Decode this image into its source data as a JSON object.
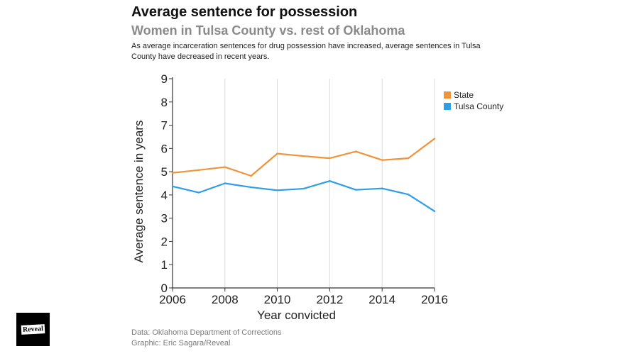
{
  "header": {
    "title": "Average sentence for possession",
    "subtitle": "Women in Tulsa County vs. rest of Oklahoma",
    "description": "As average incarceration sentences for drug possession have increased, average sentences in Tulsa County have decreased in recent years."
  },
  "footer": {
    "source": "Data: Oklahoma Department of Corrections",
    "credit": "Graphic: Eric Sagara/Reveal",
    "logo_text": "Reveal"
  },
  "colors": {
    "state": "#f0943a",
    "tulsa": "#2e9ee8",
    "grid": "#d9d9d9",
    "axis": "#333333"
  },
  "chart_data": {
    "type": "line",
    "title": "Average sentence for possession",
    "subtitle": "Women in Tulsa County vs. rest of Oklahoma",
    "xlabel": "Year convicted",
    "ylabel": "Average sentence in years",
    "x": [
      2006,
      2007,
      2008,
      2009,
      2010,
      2011,
      2012,
      2013,
      2014,
      2015,
      2016
    ],
    "xticks": [
      2006,
      2008,
      2010,
      2012,
      2014,
      2016
    ],
    "yticks": [
      0,
      1,
      2,
      3,
      4,
      5,
      6,
      7,
      8,
      9
    ],
    "xlim": [
      2006,
      2016
    ],
    "ylim": [
      0,
      9
    ],
    "grid": "vertical",
    "legend": "top-right",
    "series": [
      {
        "name": "State",
        "color": "#f0943a",
        "values": [
          4.95,
          5.07,
          5.2,
          4.82,
          5.78,
          5.67,
          5.58,
          5.87,
          5.5,
          5.58,
          6.42
        ]
      },
      {
        "name": "Tulsa County",
        "color": "#2e9ee8",
        "values": [
          4.37,
          4.1,
          4.5,
          4.33,
          4.2,
          4.27,
          4.6,
          4.22,
          4.28,
          4.02,
          3.3
        ]
      }
    ]
  }
}
